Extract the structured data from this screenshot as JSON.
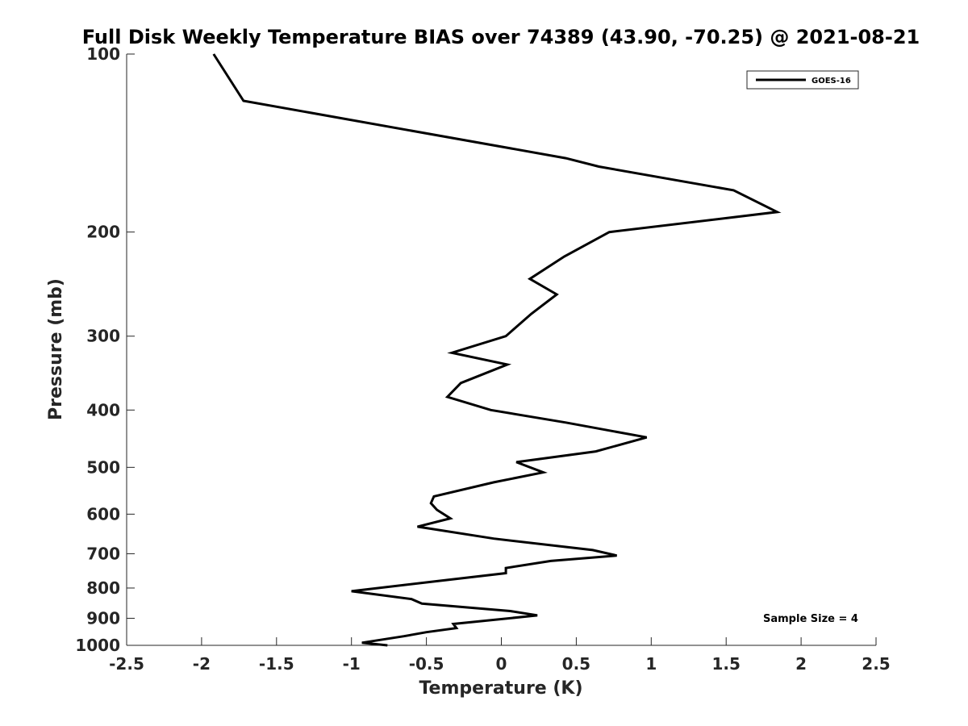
{
  "chart_data": {
    "type": "line",
    "title": "Full Disk Weekly Temperature BIAS over 74389 (43.90, -70.25) @ 2021-08-21",
    "xlabel": "Temperature (K)",
    "ylabel": "Pressure (mb)",
    "xlim": [
      -2.5,
      2.5
    ],
    "ylim": [
      1000,
      100
    ],
    "y_scale": "log",
    "y_reversed": true,
    "x_ticks": [
      "-2.5",
      "-2",
      "-1.5",
      "-1",
      "-0.5",
      "0",
      "0.5",
      "1",
      "1.5",
      "2",
      "2.5"
    ],
    "y_ticks": [
      "100",
      "200",
      "300",
      "400",
      "500",
      "600",
      "700",
      "800",
      "900",
      "1000"
    ],
    "grid": false,
    "legend": {
      "position": "top-right",
      "entries": [
        "GOES-16"
      ]
    },
    "series": [
      {
        "name": "GOES-16",
        "color": "#000000",
        "points": [
          [
            -1.92,
            100
          ],
          [
            -1.72,
            120
          ],
          [
            0.43,
            150
          ],
          [
            0.65,
            155
          ],
          [
            1.55,
            170
          ],
          [
            1.84,
            185
          ],
          [
            0.72,
            200
          ],
          [
            0.42,
            220
          ],
          [
            0.19,
            240
          ],
          [
            0.37,
            255
          ],
          [
            0.2,
            275
          ],
          [
            0.03,
            300
          ],
          [
            -0.33,
            320
          ],
          [
            0.04,
            335
          ],
          [
            -0.27,
            360
          ],
          [
            -0.36,
            380
          ],
          [
            -0.07,
            400
          ],
          [
            0.43,
            420
          ],
          [
            0.97,
            445
          ],
          [
            0.63,
            470
          ],
          [
            0.1,
            490
          ],
          [
            0.28,
            510
          ],
          [
            -0.05,
            530
          ],
          [
            -0.45,
            560
          ],
          [
            -0.47,
            575
          ],
          [
            -0.43,
            590
          ],
          [
            -0.34,
            610
          ],
          [
            -0.56,
            630
          ],
          [
            -0.05,
            660
          ],
          [
            0.61,
            690
          ],
          [
            0.77,
            705
          ],
          [
            0.33,
            720
          ],
          [
            0.03,
            740
          ],
          [
            0.03,
            755
          ],
          [
            -0.45,
            780
          ],
          [
            -1.0,
            810
          ],
          [
            -0.6,
            835
          ],
          [
            -0.53,
            850
          ],
          [
            0.06,
            875
          ],
          [
            0.24,
            890
          ],
          [
            -0.32,
            920
          ],
          [
            -0.3,
            935
          ],
          [
            -0.5,
            950
          ],
          [
            -0.65,
            965
          ],
          [
            -0.93,
            990
          ],
          [
            -0.76,
            1000
          ]
        ]
      }
    ],
    "annotations": [
      "Sample Size = 4"
    ]
  }
}
